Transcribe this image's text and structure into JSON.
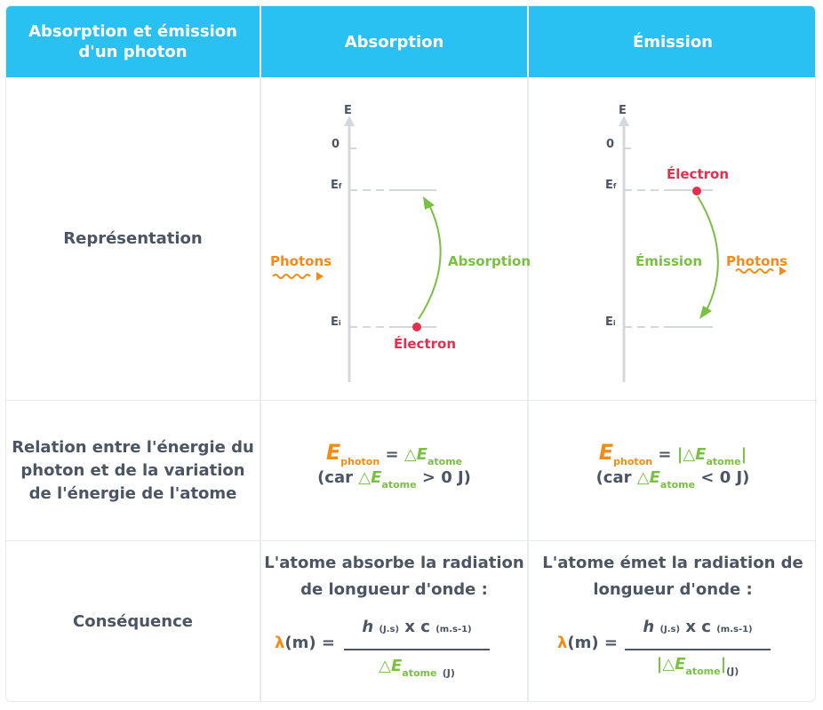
{
  "header": {
    "col1_line1": "Absorption et émission",
    "col1_line2": "d'un photon",
    "col2": "Absorption",
    "col3": "Émission"
  },
  "rows": {
    "representation": "Représentation",
    "relation_line1": "Relation entre l'énergie du",
    "relation_line2": "photon et de la variation",
    "relation_line3": "de l'énergie de l'atome",
    "consequence": "Conséquence"
  },
  "diagram": {
    "axis_label": "E",
    "zero_label": "0",
    "ef_label": "E",
    "ef_sub": "f",
    "ei_label": "E",
    "ei_sub": "i",
    "photons": "Photons",
    "electron": "Électron",
    "absorption": "Absorption",
    "emission": "Émission"
  },
  "relation": {
    "E": "E",
    "photon_sub": "photon",
    "equals": "=",
    "delta": "△",
    "atome_sub": "atome",
    "abs_bar_left": "",
    "emi_bar": "|",
    "car_open": "(car ",
    "abs_cond": "> 0 J)",
    "emi_cond": "< 0 J)"
  },
  "consequence": {
    "abs_line1": "L'atome absorbe la radiation",
    "abs_line2": "de longueur d'onde :",
    "emi_line1": "L'atome émet la radiation de",
    "emi_line2": "longueur d'onde :",
    "lambda": "λ",
    "lambda_unit": "(m) =",
    "h": "h",
    "h_unit": "(J.s)",
    "times_c": "x c",
    "c_unit": "(m.s-1)",
    "den_E": "E",
    "den_sub": "atome",
    "den_unit": "(J)",
    "den_delta": "△"
  },
  "colors": {
    "header_bg": "#29c0f2",
    "orange": "#f28c14",
    "green": "#7ac142",
    "red": "#e2304f",
    "text": "#4b5563"
  }
}
